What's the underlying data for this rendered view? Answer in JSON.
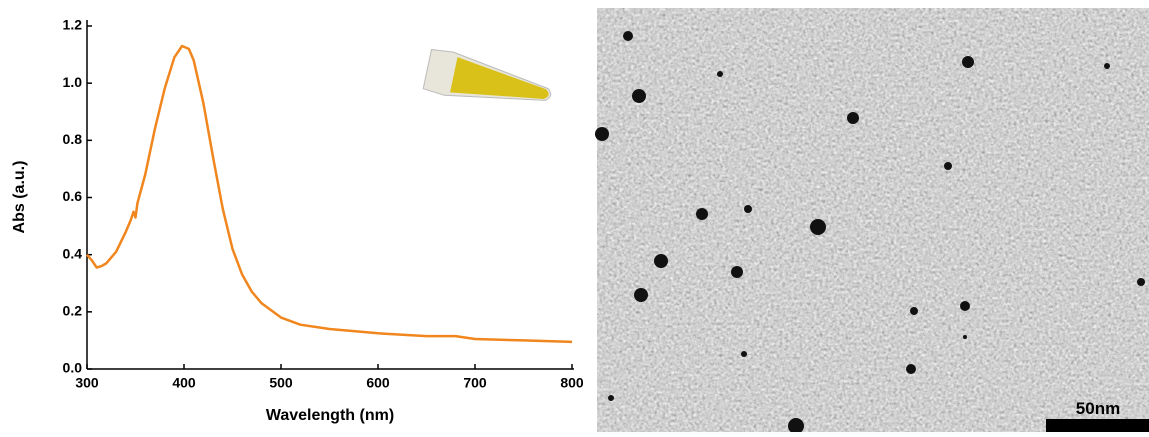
{
  "chart_data": {
    "type": "line",
    "x_label": "Wavelength (nm)",
    "y_label": "Abs (a.u.)",
    "x": [
      300,
      305,
      310,
      315,
      320,
      330,
      340,
      345,
      348,
      350,
      352,
      360,
      370,
      380,
      390,
      398,
      405,
      410,
      420,
      430,
      440,
      450,
      460,
      470,
      480,
      500,
      520,
      550,
      600,
      650,
      680,
      700,
      750,
      800
    ],
    "series": [
      {
        "color": "#f0861d",
        "values": [
          0.4,
          0.38,
          0.355,
          0.36,
          0.37,
          0.41,
          0.48,
          0.52,
          0.55,
          0.53,
          0.58,
          0.68,
          0.84,
          0.98,
          1.09,
          1.13,
          1.12,
          1.08,
          0.93,
          0.74,
          0.56,
          0.42,
          0.33,
          0.27,
          0.23,
          0.18,
          0.155,
          0.14,
          0.125,
          0.115,
          0.115,
          0.105,
          0.1,
          0.095
        ]
      }
    ],
    "xlim": [
      300,
      800
    ],
    "xticks": [
      300,
      400,
      500,
      600,
      700,
      800
    ],
    "ylim": [
      0,
      1.2
    ],
    "yticks": [
      {
        "value": 0,
        "label": "0.0"
      },
      0.2,
      0.4,
      0.6,
      0.8,
      {
        "value": 1,
        "label": "1.0"
      },
      1.2
    ]
  },
  "image": {
    "scale_bar_label": "50nm"
  }
}
